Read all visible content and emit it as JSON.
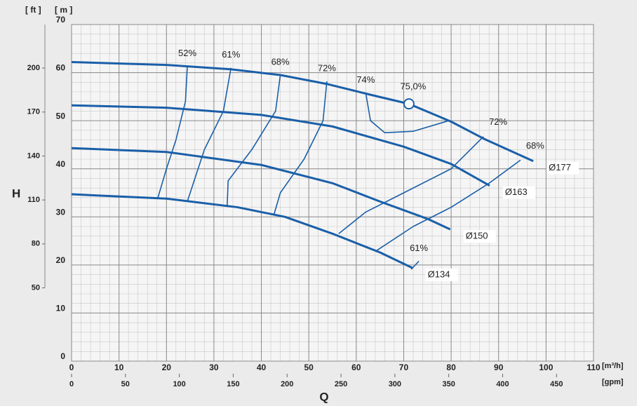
{
  "chart_data": {
    "type": "line",
    "x_label": "Q",
    "y_label": "H",
    "y_unit": "[ m ]",
    "y2_unit": "[ ft ]",
    "x_unit": "[m³/h]",
    "x2_unit": "[gpm]",
    "xlim": [
      0,
      110
    ],
    "xticks": [
      0,
      10,
      20,
      30,
      40,
      50,
      60,
      70,
      80,
      90,
      100,
      110
    ],
    "ylim": [
      0,
      70
    ],
    "yticks": [
      0,
      10,
      20,
      30,
      40,
      50,
      60,
      70
    ],
    "x2lim": [
      0,
      484.3
    ],
    "x2ticks": [
      0,
      50,
      100,
      150,
      200,
      250,
      300,
      350,
      400,
      450
    ],
    "y2lim": [
      0,
      229.7
    ],
    "y2ticks": [
      50,
      80,
      110,
      140,
      170,
      200
    ],
    "grid": true,
    "color": "#1a5fa8",
    "series": [
      {
        "name": "Ø177",
        "x": [
          0,
          20,
          33.5,
          44,
          54,
          63,
          71.1,
          80,
          87,
          97.3
        ],
        "values": [
          62.2,
          61.6,
          60.7,
          59.5,
          57.6,
          55.4,
          53.5,
          49.8,
          46.2,
          41.6
        ]
      },
      {
        "name": "Ø163",
        "x": [
          0,
          20,
          40,
          55,
          70,
          80,
          88.1
        ],
        "values": [
          53.2,
          52.7,
          51.2,
          48.8,
          44.6,
          41,
          36.5
        ]
      },
      {
        "name": "Ø150",
        "x": [
          0,
          20,
          40,
          55,
          65,
          75,
          79.8
        ],
        "values": [
          44.3,
          43.5,
          40.8,
          37,
          33.2,
          29.6,
          27.4
        ]
      },
      {
        "name": "Ø134",
        "x": [
          0,
          20,
          35,
          45,
          55,
          65,
          71.8
        ],
        "values": [
          34.7,
          33.8,
          32,
          30,
          26.5,
          22.6,
          19.4
        ]
      }
    ],
    "efficiency_lines": [
      {
        "name": "52%",
        "x": [
          24.4,
          24,
          22,
          20,
          18.2
        ],
        "values": [
          61.3,
          54,
          46,
          40,
          34
        ]
      },
      {
        "name": "61%",
        "x": [
          33.6,
          32,
          28,
          26,
          24.4
        ],
        "values": [
          61,
          52,
          44,
          38,
          33.2
        ]
      },
      {
        "name": "68%",
        "x": [
          44,
          43,
          38,
          33,
          32.8
        ],
        "values": [
          59.5,
          52,
          44,
          37.5,
          32.4
        ]
      },
      {
        "name": "72%",
        "x": [
          53.8,
          53,
          49,
          44,
          42.6
        ],
        "values": [
          58.2,
          50,
          42,
          35,
          30.3
        ]
      },
      {
        "name": "74%",
        "x": [
          62,
          63,
          66,
          72,
          79.5
        ],
        "values": [
          55.8,
          50,
          47.5,
          47.8,
          50
        ]
      },
      {
        "name": "72%",
        "x": [
          86.8,
          80,
          70,
          62,
          56.3
        ],
        "values": [
          46.7,
          40,
          35,
          31,
          26.5
        ]
      },
      {
        "name": "68%",
        "x": [
          94.6,
          88,
          80,
          72,
          64.3
        ],
        "values": [
          41.8,
          37,
          32,
          28,
          23
        ]
      },
      {
        "name": "61%",
        "x": [
          73.2,
          71.6
        ],
        "values": [
          20.8,
          19.1
        ]
      }
    ],
    "best_point": {
      "label": "75,0%",
      "x": 71.1,
      "y": 53.5
    }
  }
}
